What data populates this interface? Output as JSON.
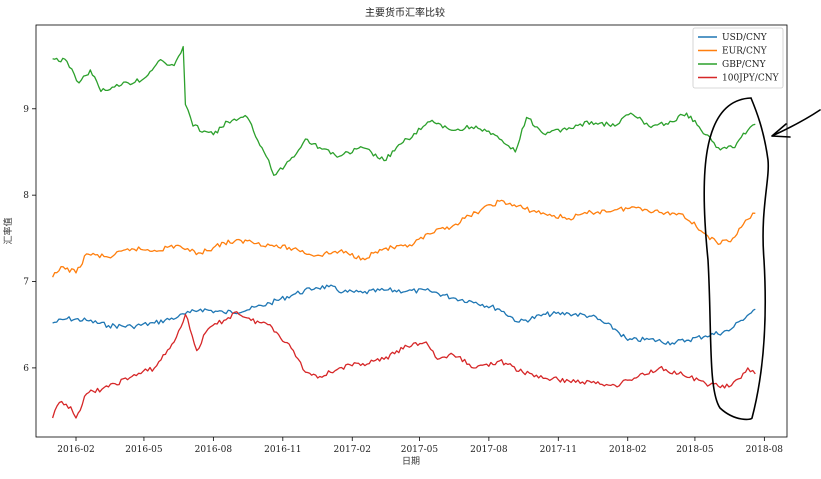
{
  "chart_data": {
    "type": "line",
    "title": "主要货币汇率比较",
    "xlabel": "日期",
    "ylabel": "汇率值",
    "x_ticks": [
      "2016-02",
      "2016-05",
      "2016-08",
      "2016-11",
      "2017-02",
      "2017-05",
      "2017-08",
      "2017-11",
      "2018-02",
      "2018-05",
      "2018-08"
    ],
    "y_ticks": [
      6,
      7,
      8,
      9
    ],
    "xlim": [
      "2015-12-10",
      "2018-08-31"
    ],
    "ylim": [
      5.2,
      9.97
    ],
    "grid": false,
    "legend_position": "top-right",
    "series": [
      {
        "name": "USD/CNY",
        "color": "#1f77b4",
        "points": [
          [
            "2016-01-01",
            6.52
          ],
          [
            "2016-01-20",
            6.57
          ],
          [
            "2016-02-15",
            6.55
          ],
          [
            "2016-03-15",
            6.49
          ],
          [
            "2016-04-15",
            6.48
          ],
          [
            "2016-05-15",
            6.52
          ],
          [
            "2016-06-15",
            6.59
          ],
          [
            "2016-07-01",
            6.64
          ],
          [
            "2016-07-15",
            6.68
          ],
          [
            "2016-08-15",
            6.64
          ],
          [
            "2016-09-15",
            6.67
          ],
          [
            "2016-10-15",
            6.75
          ],
          [
            "2016-11-15",
            6.85
          ],
          [
            "2016-12-15",
            6.93
          ],
          [
            "2017-01-01",
            6.94
          ],
          [
            "2017-01-20",
            6.88
          ],
          [
            "2017-02-15",
            6.87
          ],
          [
            "2017-03-15",
            6.9
          ],
          [
            "2017-04-15",
            6.89
          ],
          [
            "2017-05-15",
            6.89
          ],
          [
            "2017-06-15",
            6.81
          ],
          [
            "2017-07-15",
            6.76
          ],
          [
            "2017-08-15",
            6.68
          ],
          [
            "2017-09-10",
            6.53
          ],
          [
            "2017-10-15",
            6.62
          ],
          [
            "2017-11-15",
            6.63
          ],
          [
            "2017-12-15",
            6.6
          ],
          [
            "2018-01-15",
            6.45
          ],
          [
            "2018-02-01",
            6.32
          ],
          [
            "2018-03-01",
            6.33
          ],
          [
            "2018-04-01",
            6.29
          ],
          [
            "2018-04-20",
            6.32
          ],
          [
            "2018-05-15",
            6.37
          ],
          [
            "2018-06-15",
            6.43
          ],
          [
            "2018-07-01",
            6.55
          ],
          [
            "2018-07-20",
            6.68
          ]
        ]
      },
      {
        "name": "EUR/CNY",
        "color": "#ff7f0e",
        "points": [
          [
            "2016-01-01",
            7.05
          ],
          [
            "2016-01-15",
            7.17
          ],
          [
            "2016-02-01",
            7.1
          ],
          [
            "2016-02-15",
            7.32
          ],
          [
            "2016-03-15",
            7.28
          ],
          [
            "2016-04-15",
            7.38
          ],
          [
            "2016-05-15",
            7.36
          ],
          [
            "2016-06-15",
            7.42
          ],
          [
            "2016-07-01",
            7.35
          ],
          [
            "2016-07-15",
            7.33
          ],
          [
            "2016-08-15",
            7.45
          ],
          [
            "2016-09-15",
            7.47
          ],
          [
            "2016-10-15",
            7.42
          ],
          [
            "2016-11-15",
            7.38
          ],
          [
            "2016-12-15",
            7.3
          ],
          [
            "2017-01-15",
            7.35
          ],
          [
            "2017-02-15",
            7.27
          ],
          [
            "2017-03-15",
            7.38
          ],
          [
            "2017-04-15",
            7.4
          ],
          [
            "2017-05-15",
            7.55
          ],
          [
            "2017-06-15",
            7.65
          ],
          [
            "2017-07-15",
            7.8
          ],
          [
            "2017-08-15",
            7.93
          ],
          [
            "2017-09-15",
            7.85
          ],
          [
            "2017-10-15",
            7.78
          ],
          [
            "2017-11-15",
            7.73
          ],
          [
            "2017-12-15",
            7.8
          ],
          [
            "2018-01-15",
            7.83
          ],
          [
            "2018-02-15",
            7.86
          ],
          [
            "2018-03-15",
            7.8
          ],
          [
            "2018-04-15",
            7.78
          ],
          [
            "2018-05-15",
            7.55
          ],
          [
            "2018-06-01",
            7.43
          ],
          [
            "2018-06-20",
            7.5
          ],
          [
            "2018-07-10",
            7.72
          ],
          [
            "2018-07-20",
            7.79
          ]
        ]
      },
      {
        "name": "GBP/CNY",
        "color": "#2ca02c",
        "points": [
          [
            "2016-01-01",
            9.58
          ],
          [
            "2016-01-20",
            9.55
          ],
          [
            "2016-02-05",
            9.3
          ],
          [
            "2016-02-20",
            9.45
          ],
          [
            "2016-03-05",
            9.2
          ],
          [
            "2016-03-20",
            9.25
          ],
          [
            "2016-04-10",
            9.3
          ],
          [
            "2016-05-01",
            9.35
          ],
          [
            "2016-05-20",
            9.55
          ],
          [
            "2016-06-10",
            9.5
          ],
          [
            "2016-06-22",
            9.72
          ],
          [
            "2016-06-25",
            9.05
          ],
          [
            "2016-07-05",
            8.8
          ],
          [
            "2016-08-01",
            8.7
          ],
          [
            "2016-08-20",
            8.85
          ],
          [
            "2016-09-15",
            8.9
          ],
          [
            "2016-10-10",
            8.45
          ],
          [
            "2016-10-20",
            8.23
          ],
          [
            "2016-11-10",
            8.4
          ],
          [
            "2016-12-01",
            8.65
          ],
          [
            "2016-12-20",
            8.55
          ],
          [
            "2017-01-15",
            8.45
          ],
          [
            "2017-02-15",
            8.55
          ],
          [
            "2017-03-15",
            8.4
          ],
          [
            "2017-04-15",
            8.65
          ],
          [
            "2017-05-15",
            8.85
          ],
          [
            "2017-06-15",
            8.75
          ],
          [
            "2017-07-15",
            8.8
          ],
          [
            "2017-08-15",
            8.65
          ],
          [
            "2017-09-05",
            8.5
          ],
          [
            "2017-09-20",
            8.9
          ],
          [
            "2017-10-15",
            8.7
          ],
          [
            "2017-11-15",
            8.78
          ],
          [
            "2017-12-15",
            8.85
          ],
          [
            "2018-01-15",
            8.8
          ],
          [
            "2018-02-05",
            8.95
          ],
          [
            "2018-03-01",
            8.8
          ],
          [
            "2018-04-01",
            8.85
          ],
          [
            "2018-04-20",
            8.95
          ],
          [
            "2018-05-15",
            8.7
          ],
          [
            "2018-06-01",
            8.55
          ],
          [
            "2018-06-20",
            8.55
          ],
          [
            "2018-07-10",
            8.75
          ],
          [
            "2018-07-20",
            8.82
          ]
        ]
      },
      {
        "name": "100JPY/CNY",
        "color": "#d62728",
        "points": [
          [
            "2016-01-01",
            5.42
          ],
          [
            "2016-01-10",
            5.6
          ],
          [
            "2016-01-25",
            5.55
          ],
          [
            "2016-02-01",
            5.42
          ],
          [
            "2016-02-15",
            5.7
          ],
          [
            "2016-03-15",
            5.78
          ],
          [
            "2016-04-15",
            5.9
          ],
          [
            "2016-05-15",
            6.0
          ],
          [
            "2016-06-10",
            6.3
          ],
          [
            "2016-06-25",
            6.62
          ],
          [
            "2016-07-10",
            6.2
          ],
          [
            "2016-07-25",
            6.45
          ],
          [
            "2016-08-15",
            6.55
          ],
          [
            "2016-09-01",
            6.65
          ],
          [
            "2016-09-20",
            6.55
          ],
          [
            "2016-10-15",
            6.5
          ],
          [
            "2016-11-15",
            6.2
          ],
          [
            "2016-12-01",
            5.95
          ],
          [
            "2016-12-20",
            5.9
          ],
          [
            "2017-01-15",
            6.0
          ],
          [
            "2017-02-15",
            6.05
          ],
          [
            "2017-03-15",
            6.1
          ],
          [
            "2017-04-15",
            6.25
          ],
          [
            "2017-05-10",
            6.3
          ],
          [
            "2017-05-25",
            6.1
          ],
          [
            "2017-06-15",
            6.15
          ],
          [
            "2017-07-15",
            6.0
          ],
          [
            "2017-08-15",
            6.08
          ],
          [
            "2017-09-15",
            5.95
          ],
          [
            "2017-10-15",
            5.88
          ],
          [
            "2017-11-15",
            5.85
          ],
          [
            "2017-12-15",
            5.83
          ],
          [
            "2018-01-15",
            5.8
          ],
          [
            "2018-02-15",
            5.9
          ],
          [
            "2018-03-15",
            6.0
          ],
          [
            "2018-04-15",
            5.92
          ],
          [
            "2018-05-15",
            5.82
          ],
          [
            "2018-06-15",
            5.78
          ],
          [
            "2018-07-01",
            5.88
          ],
          [
            "2018-07-10",
            6.0
          ],
          [
            "2018-07-20",
            5.93
          ]
        ]
      }
    ]
  },
  "annotation": {
    "stroke_color": "#000000"
  }
}
